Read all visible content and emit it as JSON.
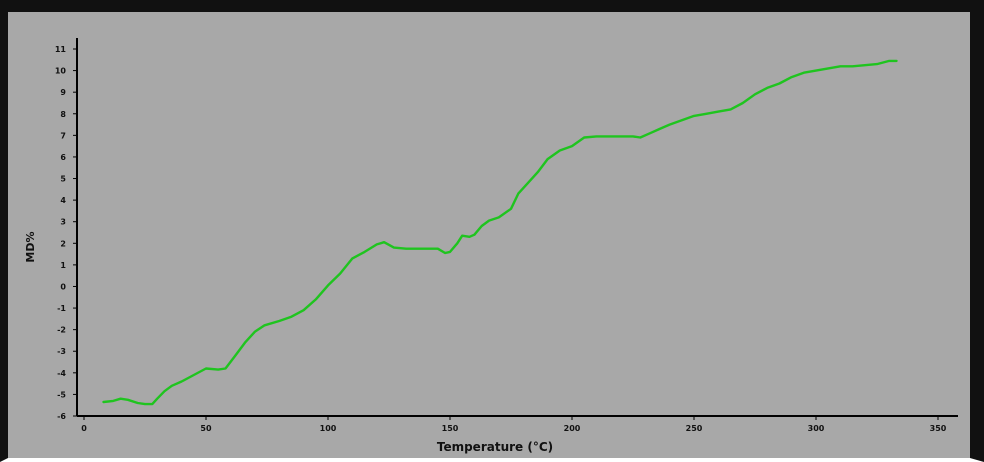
{
  "chart_data": {
    "type": "line",
    "title": "",
    "xlabel": "Temperature (°C)",
    "ylabel": "MD%",
    "xlim": [
      0,
      350
    ],
    "ylim": [
      -6,
      11
    ],
    "xticks": [
      "0",
      "50",
      "100",
      "150",
      "200",
      "250",
      "300",
      "350"
    ],
    "yticks": [
      "-6",
      "-5",
      "-4",
      "-3",
      "-2",
      "-1",
      "0",
      "1",
      "2",
      "3",
      "4",
      "5",
      "6",
      "7",
      "8",
      "9",
      "10",
      "11"
    ],
    "grid": false,
    "legend": "none",
    "series": [
      {
        "color": "#1fc41f",
        "x": [
          8,
          12,
          15,
          18,
          22,
          25,
          28,
          30,
          33,
          36,
          40,
          45,
          50,
          55,
          58,
          62,
          66,
          70,
          74,
          80,
          85,
          90,
          95,
          100,
          105,
          110,
          115,
          120,
          123,
          127,
          132,
          140,
          145,
          148,
          150,
          153,
          155,
          158,
          160,
          163,
          166,
          170,
          175,
          178,
          182,
          186,
          190,
          195,
          200,
          205,
          210,
          215,
          220,
          225,
          228,
          232,
          236,
          240,
          245,
          250,
          255,
          260,
          265,
          270,
          275,
          280,
          285,
          290,
          295,
          300,
          305,
          310,
          315,
          320,
          325,
          330,
          333
        ],
        "values": [
          -5.35,
          -5.3,
          -5.2,
          -5.25,
          -5.4,
          -5.45,
          -5.45,
          -5.2,
          -4.85,
          -4.6,
          -4.4,
          -4.1,
          -3.8,
          -3.85,
          -3.8,
          -3.2,
          -2.6,
          -2.1,
          -1.8,
          -1.6,
          -1.4,
          -1.1,
          -0.6,
          0.05,
          0.6,
          1.3,
          1.6,
          1.95,
          2.05,
          1.8,
          1.75,
          1.75,
          1.75,
          1.55,
          1.6,
          2.0,
          2.35,
          2.3,
          2.4,
          2.8,
          3.05,
          3.2,
          3.6,
          4.3,
          4.8,
          5.3,
          5.9,
          6.3,
          6.5,
          6.9,
          6.95,
          6.95,
          6.95,
          6.95,
          6.9,
          7.1,
          7.3,
          7.5,
          7.7,
          7.9,
          8.0,
          8.1,
          8.2,
          8.5,
          8.9,
          9.2,
          9.4,
          9.7,
          9.9,
          10.0,
          10.1,
          10.2,
          10.2,
          10.25,
          10.3,
          10.45,
          10.45
        ]
      }
    ]
  }
}
